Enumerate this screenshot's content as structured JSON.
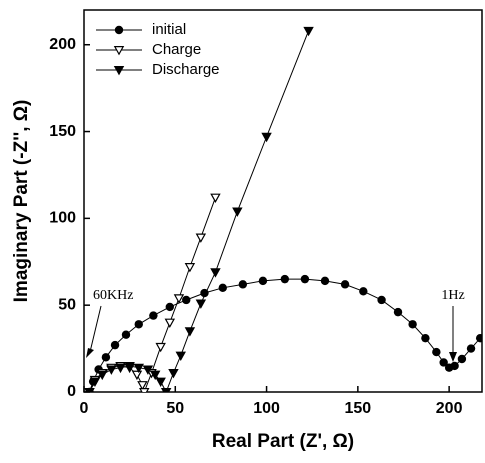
{
  "chart_data": {
    "type": "scatter",
    "x_label": "Real Part (Z', Ω)",
    "y_label": "Imaginary Part (-Z'', Ω)",
    "xlim": [
      0,
      218
    ],
    "ylim": [
      0,
      220
    ],
    "xticks": [
      0,
      50,
      100,
      150,
      200
    ],
    "yticks": [
      0,
      50,
      100,
      150,
      200
    ],
    "legend": "upper left",
    "annotations": [
      "60KHz",
      "1Hz"
    ],
    "series": [
      {
        "name": "initial",
        "color": "#000000",
        "marker": "circle",
        "x": [
          3,
          5,
          8,
          12,
          17,
          23,
          30,
          38,
          47,
          56,
          66,
          76,
          87,
          98,
          110,
          121,
          132,
          143,
          153,
          163,
          172,
          180,
          187,
          193,
          197,
          200,
          203,
          207,
          212,
          217
        ],
        "values": [
          0,
          6,
          13,
          20,
          27,
          33,
          39,
          44,
          49,
          53,
          57,
          60,
          62,
          64,
          65,
          65,
          64,
          62,
          58,
          53,
          46,
          39,
          31,
          23,
          17,
          14,
          15,
          19,
          25,
          31
        ]
      },
      {
        "name": "Charge",
        "color": "#000000",
        "marker": "triangle-open",
        "x": [
          3,
          6,
          10,
          15,
          20,
          25,
          29,
          32,
          33,
          37,
          42,
          47,
          52,
          58,
          64,
          72
        ],
        "values": [
          0,
          7,
          11,
          14,
          15,
          14,
          10,
          4,
          0,
          11,
          26,
          40,
          54,
          72,
          89,
          112
        ]
      },
      {
        "name": "Discharge",
        "color": "#000000",
        "marker": "triangle",
        "x": [
          3,
          6,
          10,
          15,
          20,
          25,
          30,
          35,
          39,
          42,
          45,
          49,
          53,
          58,
          64,
          72,
          84,
          100,
          123
        ],
        "values": [
          0,
          6,
          10,
          13,
          14,
          15,
          14,
          13,
          10,
          6,
          0,
          11,
          21,
          35,
          51,
          69,
          104,
          147,
          208
        ]
      }
    ]
  }
}
